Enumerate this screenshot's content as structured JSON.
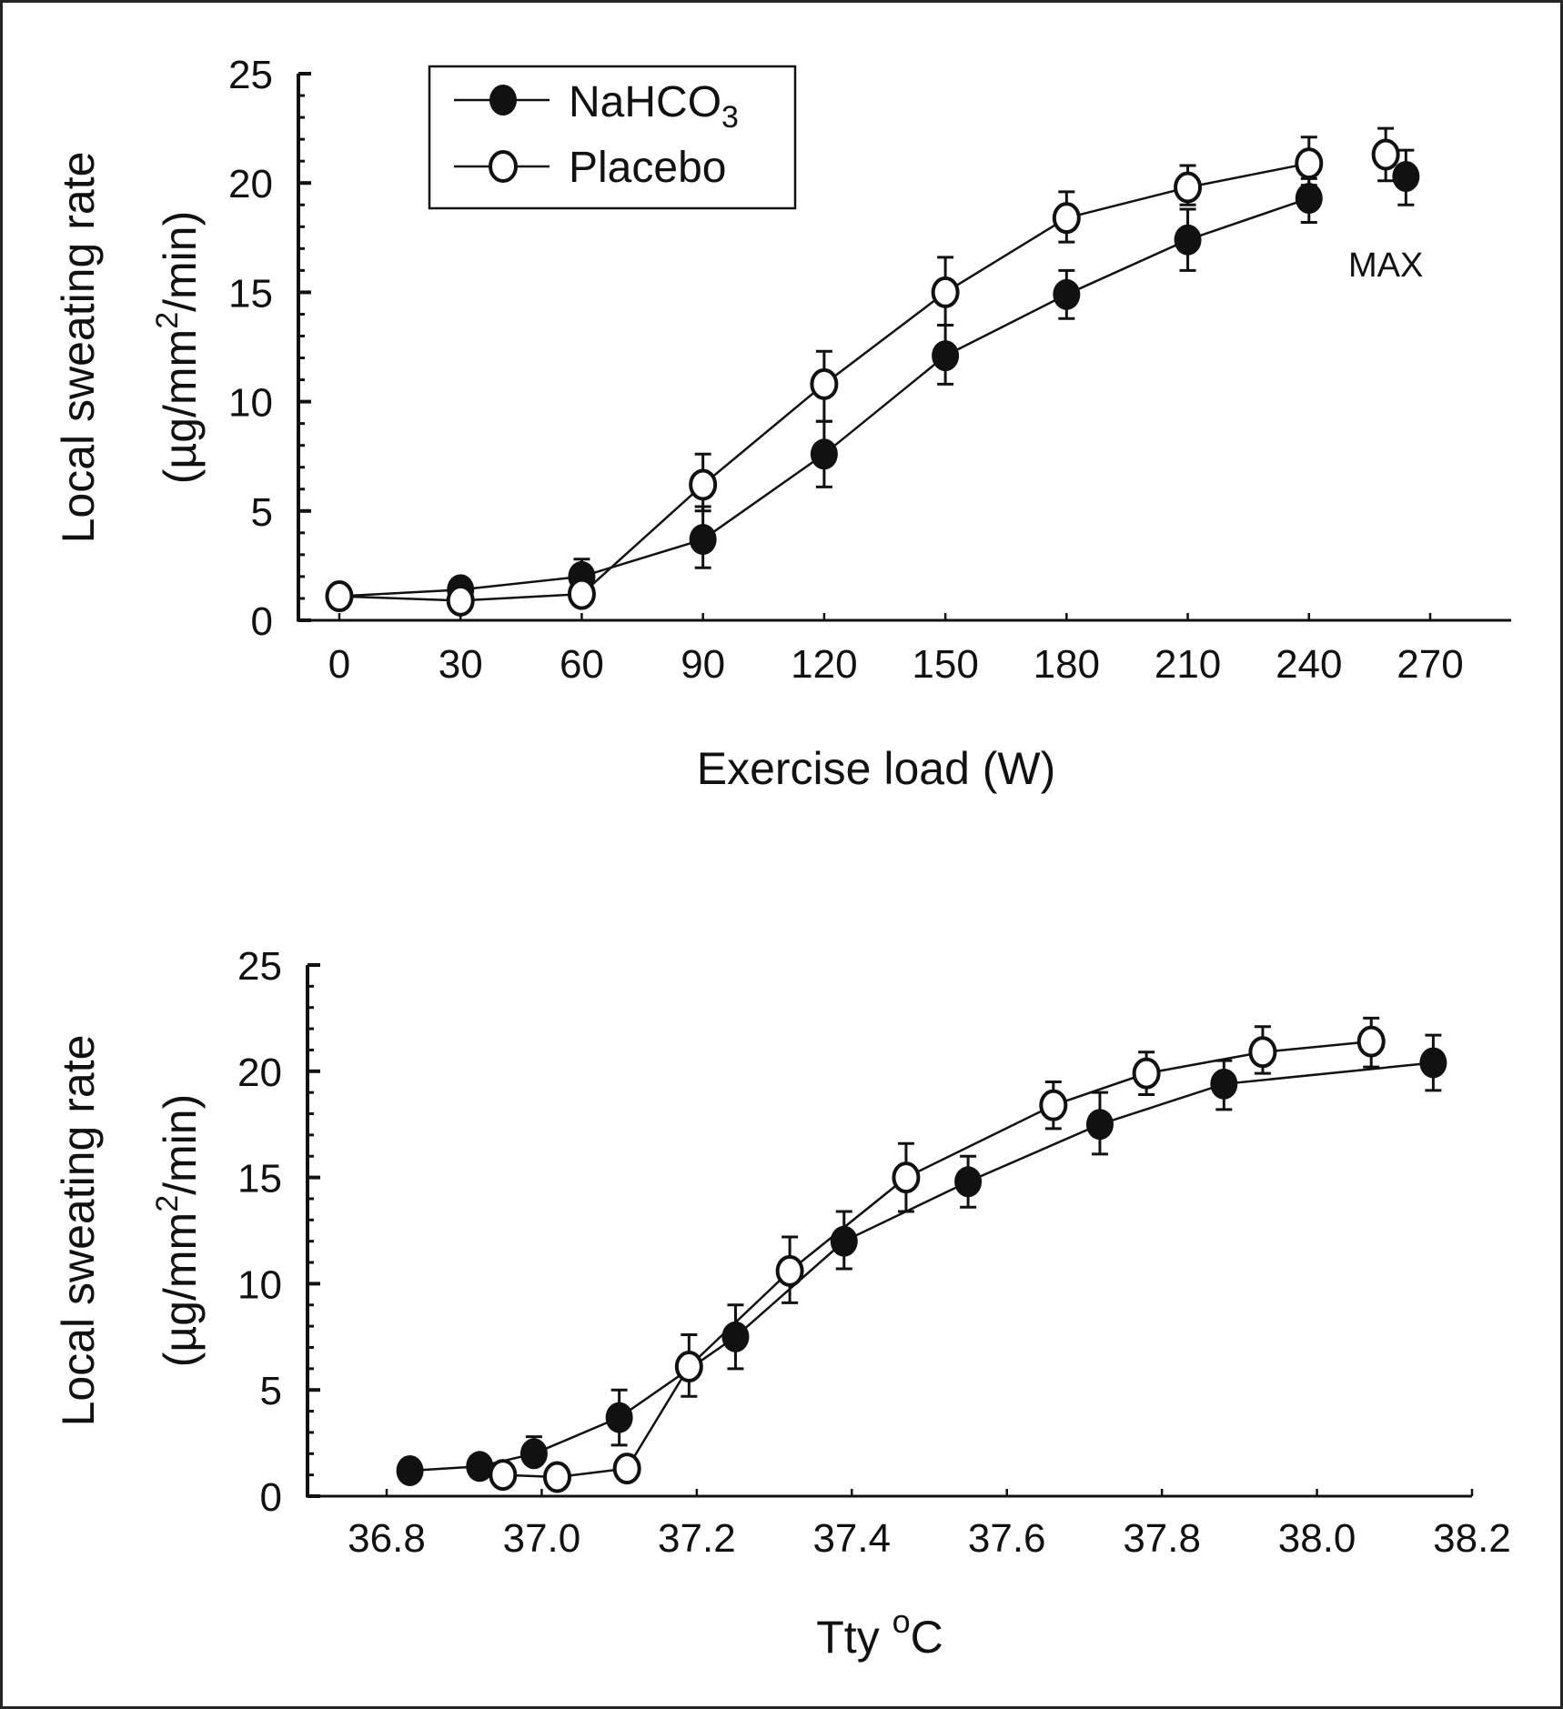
{
  "figure": {
    "border_color": "#262626",
    "ink_color": "#111111"
  },
  "chart_data": [
    {
      "id": "top",
      "type": "line",
      "title": "",
      "xlabel": "Exercise load (W)",
      "ylabel_line1": "Local sweating rate",
      "ylabel_line2_prefix": "(µg/mm",
      "ylabel_line2_sup": "2",
      "ylabel_line2_suffix": "/min)",
      "xlim": [
        -10,
        288
      ],
      "ylim": [
        0,
        25
      ],
      "x_ticks": [
        0,
        30,
        60,
        90,
        120,
        150,
        180,
        210,
        240,
        270
      ],
      "x_tick_labels": [
        "0",
        "30",
        "60",
        "90",
        "120",
        "150",
        "180",
        "210",
        "240",
        "270"
      ],
      "y_ticks": [
        0,
        5,
        10,
        15,
        20,
        25
      ],
      "y_tick_labels": [
        "0",
        "5",
        "10",
        "15",
        "20",
        "25"
      ],
      "y_minor_step": 1,
      "grid": false,
      "legend": {
        "placement": "top-left",
        "entries": [
          {
            "label_main": "NaHCO",
            "label_sub": "3",
            "marker": "filled-circle"
          },
          {
            "label_main": "Placebo",
            "label_sub": "",
            "marker": "open-circle"
          }
        ]
      },
      "annotations": [
        {
          "text": "MAX",
          "x": 259,
          "y": 16.3
        }
      ],
      "series": [
        {
          "name": "NaHCO3",
          "marker": "filled",
          "x": [
            0,
            30,
            60,
            90,
            120,
            150,
            180,
            210,
            240
          ],
          "y": [
            1.1,
            1.4,
            2.0,
            3.7,
            7.6,
            12.1,
            14.9,
            17.4,
            19.3
          ],
          "err_upper": [
            null,
            null,
            2.8,
            5.2,
            9.1,
            13.5,
            16.0,
            18.8,
            20.2
          ],
          "err_lower": [
            null,
            null,
            null,
            2.4,
            6.1,
            10.8,
            13.8,
            16.0,
            18.2
          ],
          "max_point": {
            "x": 264,
            "y": 20.3,
            "err_upper": 21.5,
            "err_lower": 19.0
          }
        },
        {
          "name": "Placebo",
          "marker": "open",
          "x": [
            0,
            30,
            60,
            90,
            120,
            150,
            180,
            210,
            240
          ],
          "y": [
            1.1,
            0.9,
            1.2,
            6.2,
            10.8,
            15.0,
            18.4,
            19.8,
            20.9
          ],
          "err_upper": [
            null,
            null,
            null,
            7.6,
            12.3,
            16.6,
            19.6,
            20.8,
            22.1
          ],
          "err_lower": [
            null,
            null,
            null,
            5.0,
            9.1,
            13.5,
            17.3,
            19.0,
            19.9
          ],
          "max_point": {
            "x": 259,
            "y": 21.3,
            "err_upper": 22.5,
            "err_lower": 20.1
          }
        }
      ]
    },
    {
      "id": "bottom",
      "type": "line",
      "title": "",
      "xlabel_main": "Tty ",
      "xlabel_sup": "o",
      "xlabel_end": "C",
      "ylabel_line1": "Local sweating rate",
      "ylabel_line2_prefix": "(µg/mm",
      "ylabel_line2_sup": "2",
      "ylabel_line2_suffix": "/min)",
      "xlim": [
        36.73,
        38.2
      ],
      "ylim": [
        0,
        25
      ],
      "x_ticks": [
        36.8,
        37.0,
        37.2,
        37.4,
        37.6,
        37.8,
        38.0,
        38.2
      ],
      "x_tick_labels": [
        "36.8",
        "37.0",
        "37.2",
        "37.4",
        "37.6",
        "37.8",
        "38.0",
        "38.2"
      ],
      "y_ticks": [
        0,
        5,
        10,
        15,
        20,
        25
      ],
      "y_tick_labels": [
        "0",
        "5",
        "10",
        "15",
        "20",
        "25"
      ],
      "y_minor_step": 1,
      "grid": false,
      "series": [
        {
          "name": "NaHCO3",
          "marker": "filled",
          "x": [
            36.83,
            36.92,
            36.99,
            37.1,
            37.25,
            37.39,
            37.55,
            37.72,
            37.88,
            38.15
          ],
          "y": [
            1.2,
            1.4,
            2.0,
            3.7,
            7.5,
            12.0,
            14.8,
            17.5,
            19.4,
            20.4
          ],
          "err_upper": [
            null,
            null,
            2.8,
            5.0,
            9.0,
            13.4,
            16.0,
            19.0,
            20.5,
            21.7
          ],
          "err_lower": [
            null,
            null,
            null,
            2.4,
            6.0,
            10.7,
            13.6,
            16.1,
            18.2,
            19.1
          ]
        },
        {
          "name": "Placebo",
          "marker": "open",
          "x": [
            36.95,
            37.02,
            37.11,
            37.19,
            37.32,
            37.47,
            37.66,
            37.78,
            37.93,
            38.07
          ],
          "y": [
            1.0,
            0.9,
            1.3,
            6.1,
            10.6,
            15.0,
            18.4,
            19.9,
            20.9,
            21.4
          ],
          "err_upper": [
            null,
            null,
            null,
            7.6,
            12.2,
            16.6,
            19.5,
            20.9,
            22.1,
            22.5
          ],
          "err_lower": [
            null,
            null,
            null,
            4.7,
            9.1,
            13.4,
            17.3,
            18.9,
            19.9,
            20.2
          ]
        }
      ]
    }
  ]
}
